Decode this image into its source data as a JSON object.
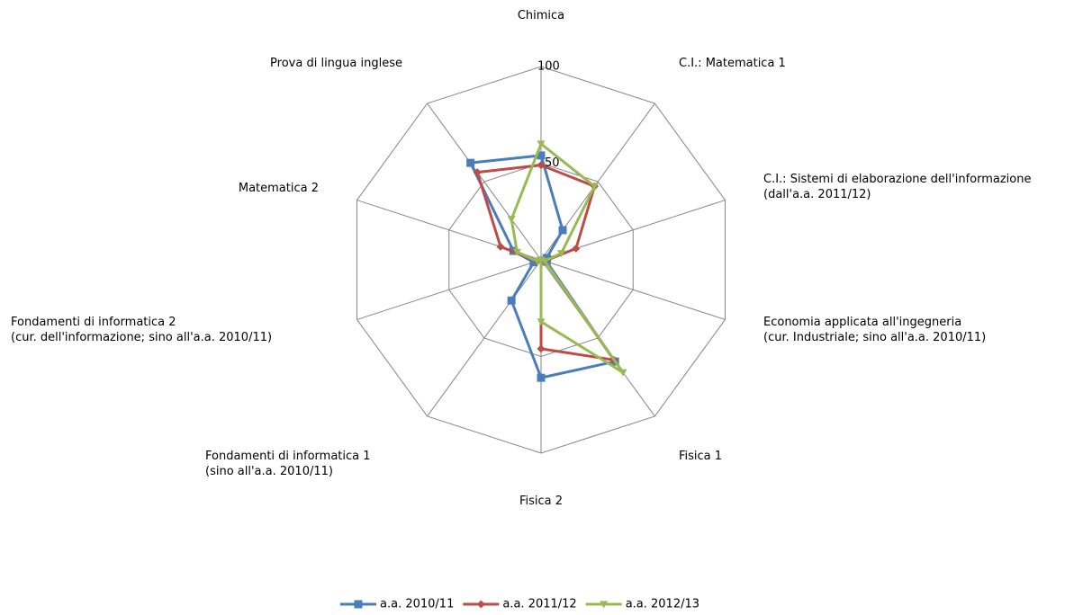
{
  "chart_data": {
    "type": "radar",
    "categories": [
      "Chimica",
      "C.I.: Matematica 1",
      "C.I.: Sistemi di elaborazione dell'informazione\n(dall'a.a. 2011/12)",
      "Economia applicata all'ingegneria\n(cur. Industriale; sino all'a.a. 2010/11)",
      "Fisica 1",
      "Fisica 2",
      "Fondamenti di informatica 1\n(sino all'a.a. 2010/11)",
      "Fondamenti di informatica 2\n(cur. dell'informazione; sino all'a.a. 2010/11)",
      "Matematica 2",
      "Prova di lingua inglese"
    ],
    "series": [
      {
        "name": "a.a. 2010/11",
        "color": "#4a7ebb",
        "marker": "square",
        "values": [
          54,
          19,
          3,
          3,
          65,
          61,
          26,
          4,
          15,
          62
        ]
      },
      {
        "name": "a.a. 2011/12",
        "color": "#be4b48",
        "marker": "diamond",
        "values": [
          49,
          47,
          19,
          2,
          64,
          46,
          0,
          2,
          22,
          56
        ]
      },
      {
        "name": "a.a. 2012/13",
        "color": "#98b954",
        "marker": "triangle-down",
        "values": [
          60,
          47,
          11,
          2,
          72,
          32,
          0,
          2,
          13,
          26
        ]
      }
    ],
    "ylim": [
      0,
      100
    ],
    "yticks": [
      0,
      50,
      100
    ],
    "grid": true,
    "legend": "bottom"
  }
}
